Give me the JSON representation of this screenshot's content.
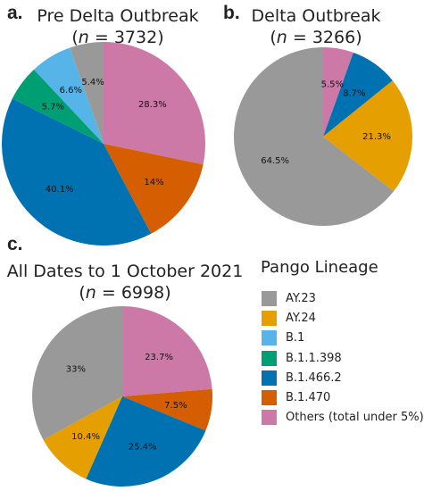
{
  "colors": {
    "AY.23": "#999999",
    "AY.24": "#e69f00",
    "B.1": "#56b4e9",
    "B.1.1.398": "#009e73",
    "B.1.466.2": "#0072b2",
    "B.1.470": "#d55e00",
    "Others (total under 5%)": "#cc79a7"
  },
  "panels": [
    {
      "letter": "a.",
      "title": "Pre Delta Outbreak",
      "n_label": "n",
      "n_text": " = 3732)",
      "open_paren": "("
    },
    {
      "letter": "b.",
      "title": "Delta Outbreak",
      "n_label": "n",
      "n_text": " = 3266)",
      "open_paren": "("
    },
    {
      "letter": "c.",
      "title": "All Dates to 1 October 2021",
      "n_label": "n",
      "n_text": " = 6998)",
      "open_paren": "("
    }
  ],
  "legend": {
    "title": "Pango Lineage",
    "items": [
      "AY.23",
      "AY.24",
      "B.1",
      "B.1.1.398",
      "B.1.466.2",
      "B.1.470",
      "Others (total under 5%)"
    ]
  },
  "chart_data": [
    {
      "type": "pie",
      "title": "Pre Delta Outbreak",
      "subtitle": "(n = 3732)",
      "slices": [
        {
          "category": "Others (total under 5%)",
          "value": 28.3,
          "label": "28.3%"
        },
        {
          "category": "B.1.470",
          "value": 14.0,
          "label": "14%"
        },
        {
          "category": "B.1.466.2",
          "value": 40.1,
          "label": "40.1%"
        },
        {
          "category": "B.1.1.398",
          "value": 5.7,
          "label": "5.7%"
        },
        {
          "category": "B.1",
          "value": 6.6,
          "label": "6.6%"
        },
        {
          "category": "AY.23",
          "value": 5.4,
          "label": "5.4%"
        }
      ]
    },
    {
      "type": "pie",
      "title": "Delta Outbreak",
      "subtitle": "(n = 3266)",
      "slices": [
        {
          "category": "Others (total under 5%)",
          "value": 5.5,
          "label": "5.5%"
        },
        {
          "category": "B.1.466.2",
          "value": 8.7,
          "label": "8.7%"
        },
        {
          "category": "AY.24",
          "value": 21.3,
          "label": "21.3%"
        },
        {
          "category": "AY.23",
          "value": 64.5,
          "label": "64.5%"
        }
      ]
    },
    {
      "type": "pie",
      "title": "All Dates to 1 October 2021",
      "subtitle": "(n = 6998)",
      "slices": [
        {
          "category": "Others (total under 5%)",
          "value": 23.7,
          "label": "23.7%"
        },
        {
          "category": "B.1.470",
          "value": 7.5,
          "label": "7.5%"
        },
        {
          "category": "B.1.466.2",
          "value": 25.4,
          "label": "25.4%"
        },
        {
          "category": "AY.24",
          "value": 10.4,
          "label": "10.4%"
        },
        {
          "category": "AY.23",
          "value": 33.0,
          "label": "33%"
        }
      ]
    }
  ]
}
